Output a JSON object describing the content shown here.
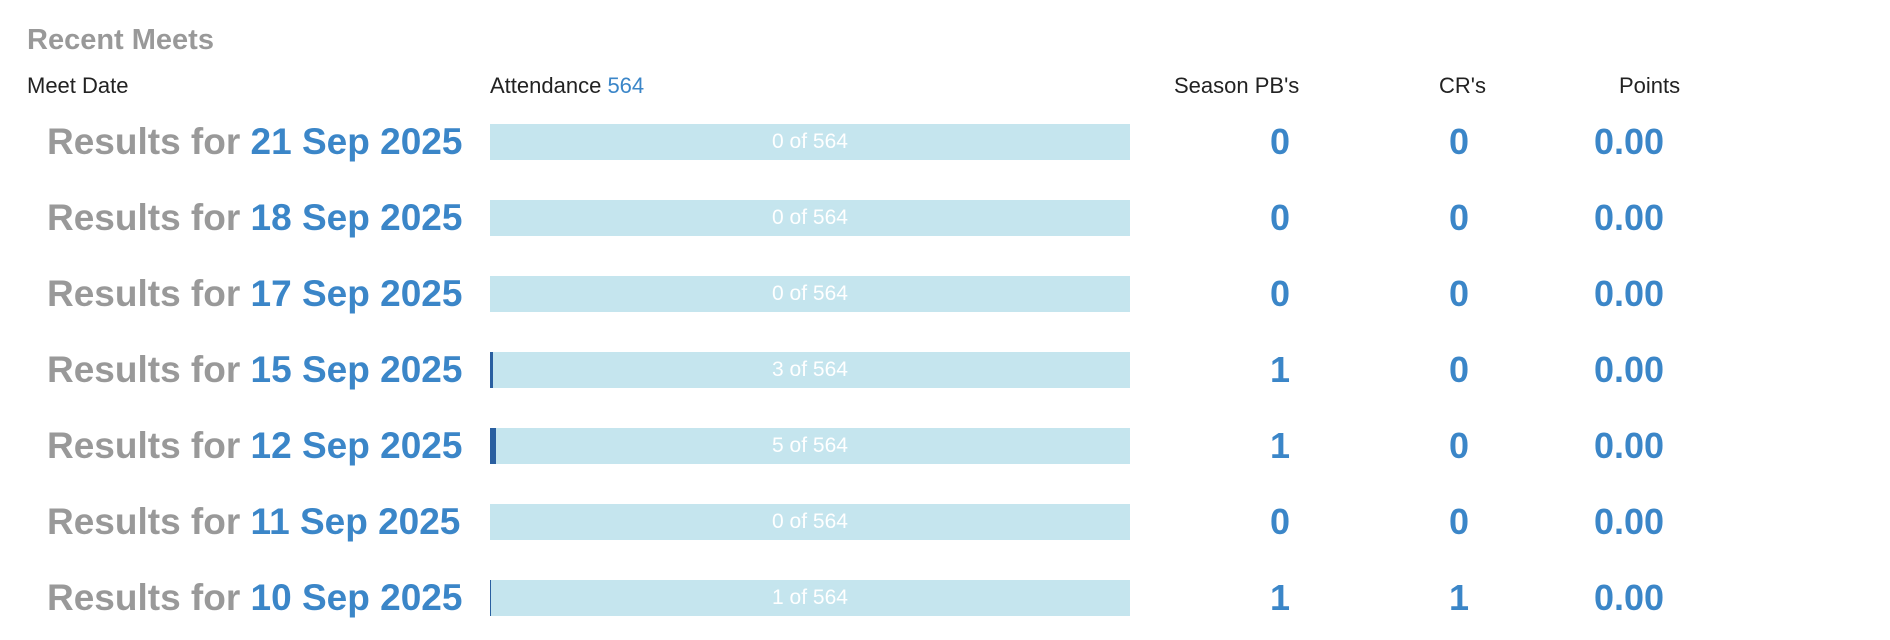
{
  "title": "Recent Meets",
  "headers": {
    "meet_date": "Meet Date",
    "attendance": "Attendance",
    "attendance_total": 564,
    "season_pbs": "Season PB's",
    "crs": "CR's",
    "points": "Points"
  },
  "row_prefix": "Results for",
  "rows": [
    {
      "date": "21 Sep 2025",
      "attended": 0,
      "attendance_label": "0 of 564",
      "season_pbs": 0,
      "crs": 0,
      "points": "0.00"
    },
    {
      "date": "18 Sep 2025",
      "attended": 0,
      "attendance_label": "0 of 564",
      "season_pbs": 0,
      "crs": 0,
      "points": "0.00"
    },
    {
      "date": "17 Sep 2025",
      "attended": 0,
      "attendance_label": "0 of 564",
      "season_pbs": 0,
      "crs": 0,
      "points": "0.00"
    },
    {
      "date": "15 Sep 2025",
      "attended": 3,
      "attendance_label": "3 of 564",
      "season_pbs": 1,
      "crs": 0,
      "points": "0.00"
    },
    {
      "date": "12 Sep 2025",
      "attended": 5,
      "attendance_label": "5 of 564",
      "season_pbs": 1,
      "crs": 0,
      "points": "0.00"
    },
    {
      "date": "11 Sep 2025",
      "attended": 0,
      "attendance_label": "0 of 564",
      "season_pbs": 0,
      "crs": 0,
      "points": "0.00"
    },
    {
      "date": "10 Sep 2025",
      "attended": 1,
      "attendance_label": "1 of 564",
      "season_pbs": 1,
      "crs": 1,
      "points": "0.00"
    }
  ]
}
